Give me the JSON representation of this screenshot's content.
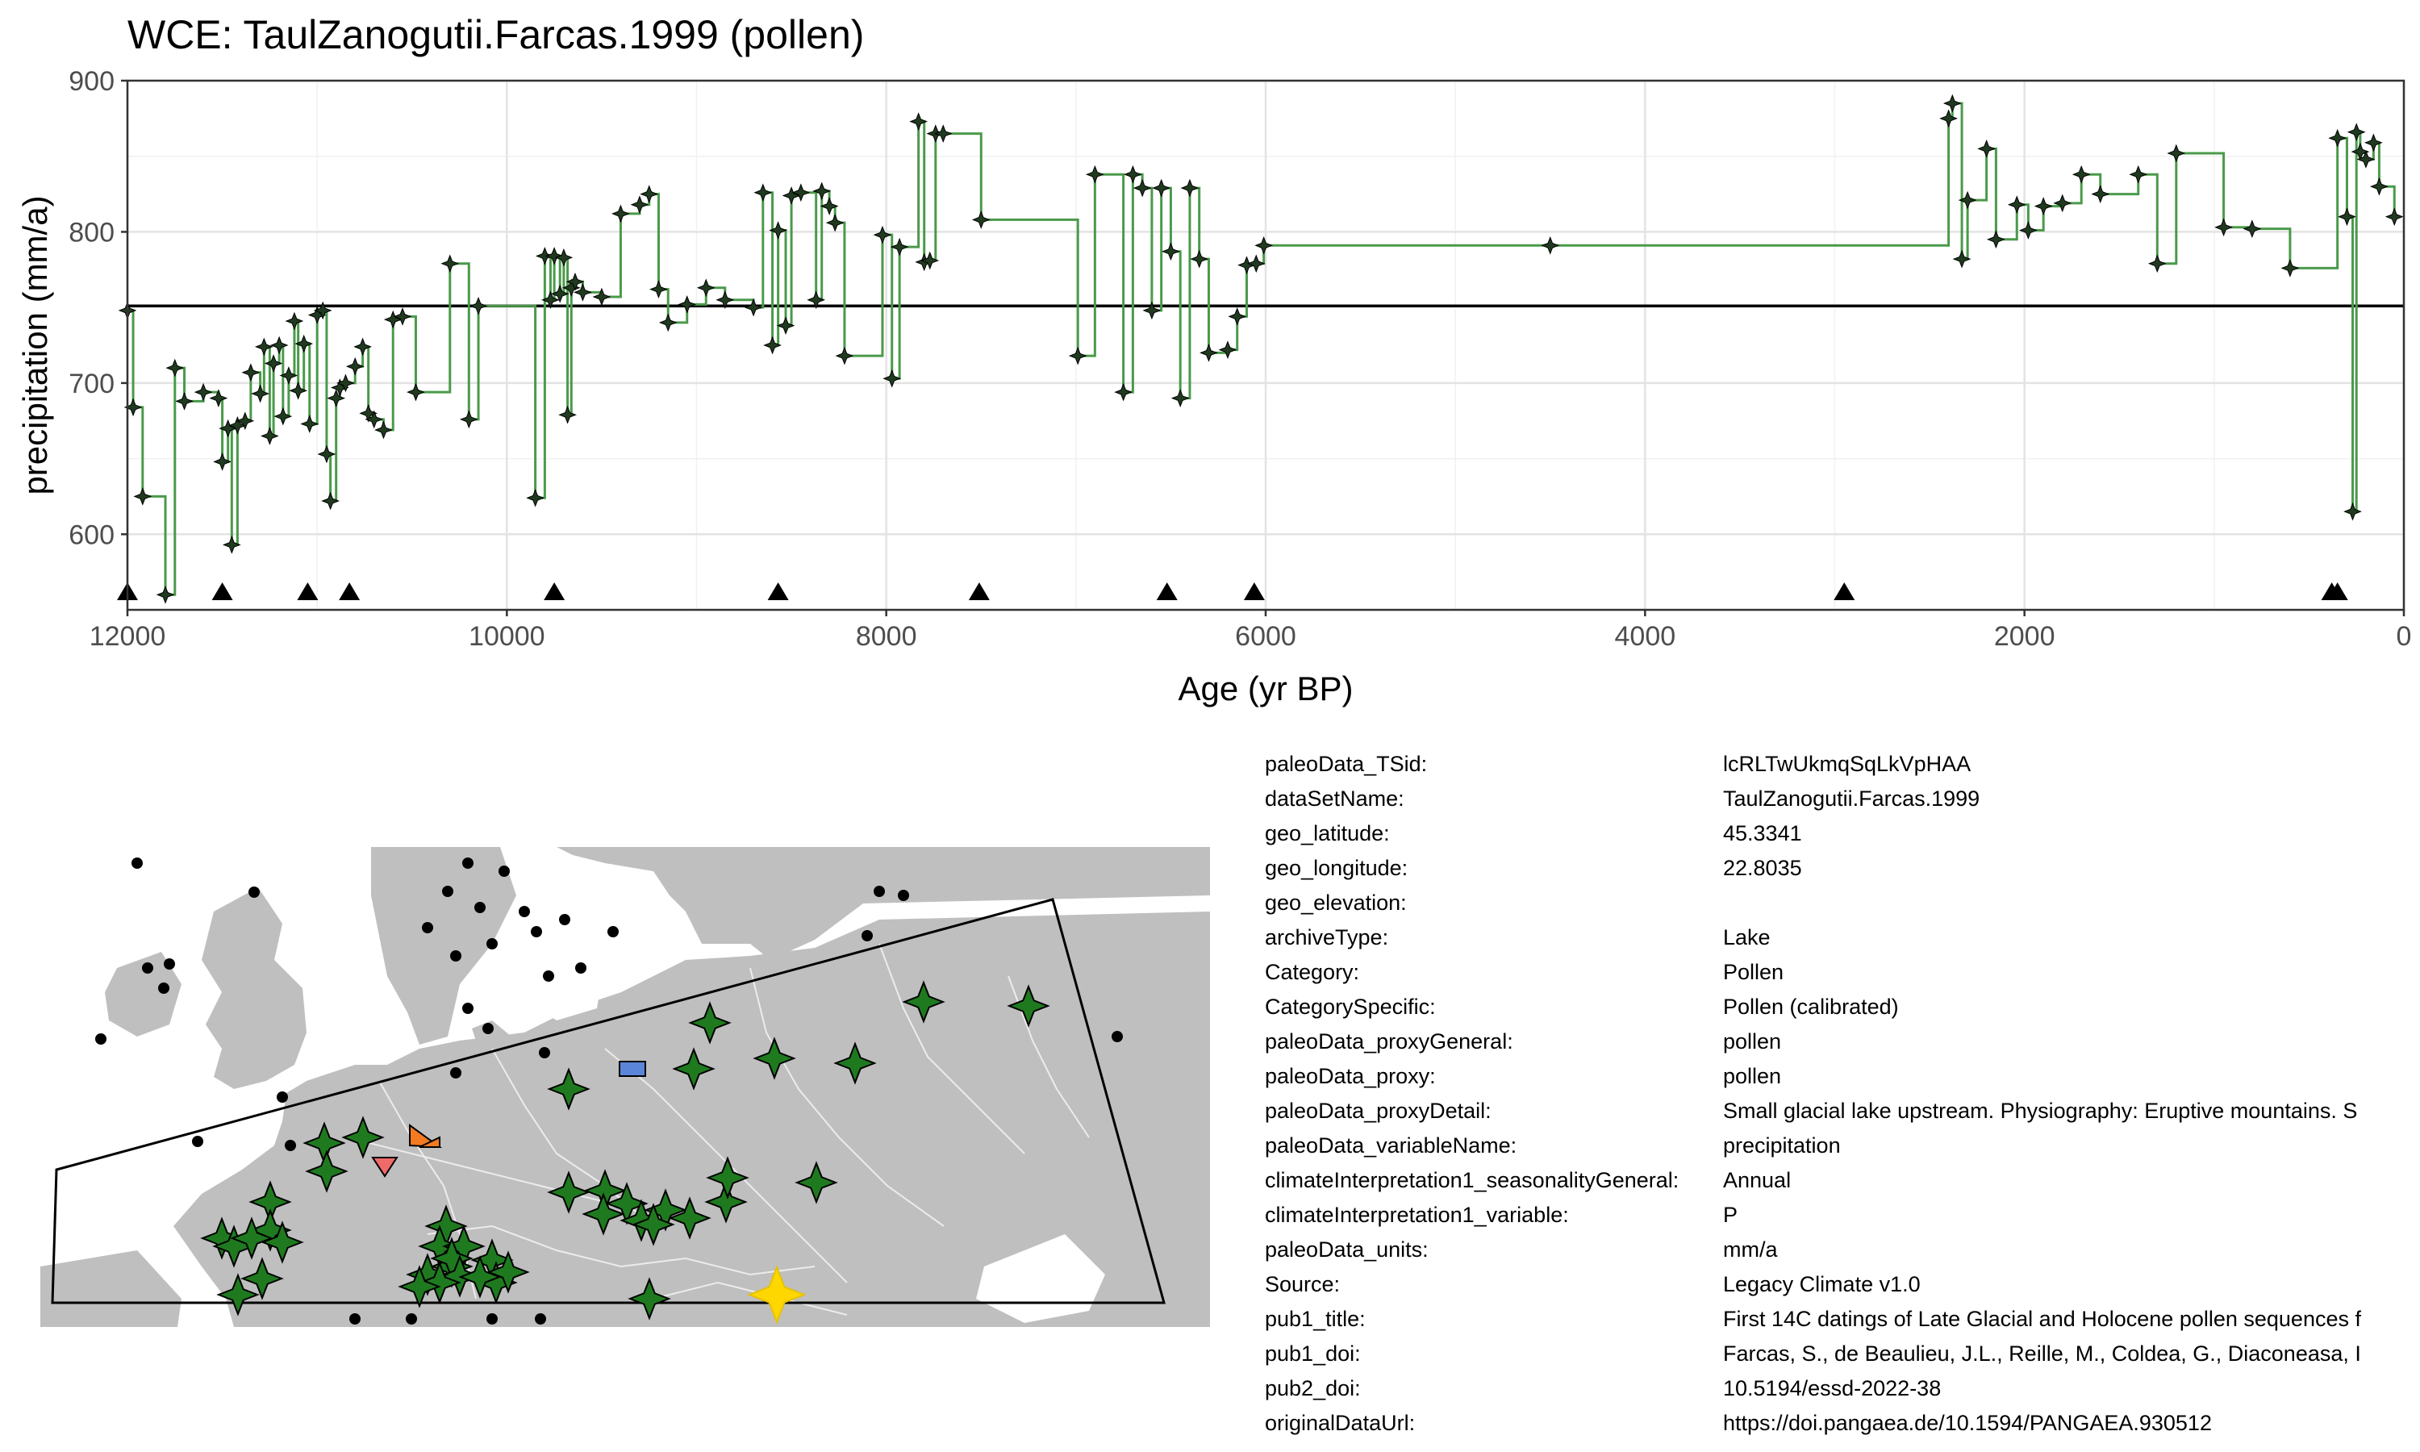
{
  "chart_data": {
    "type": "line",
    "title": "WCE: TaulZanogutii.Farcas.1999 (pollen)",
    "xlabel": "Age (yr BP)",
    "ylabel": "precipitation (mm/a)",
    "xlim": [
      12000,
      0
    ],
    "ylim": [
      550,
      900
    ],
    "x_reversed": true,
    "grid": true,
    "x_ticks": [
      12000,
      10000,
      8000,
      6000,
      4000,
      2000,
      0
    ],
    "y_ticks": [
      600,
      700,
      800,
      900
    ],
    "mean_line": 751,
    "series": [
      {
        "style": "step",
        "color": "#4a9a4a",
        "marker": "star",
        "x": [
          12000,
          11970,
          11920,
          11800,
          11750,
          11700,
          11600,
          11520,
          11500,
          11470,
          11450,
          11420,
          11380,
          11350,
          11300,
          11280,
          11250,
          11230,
          11200,
          11180,
          11150,
          11120,
          11100,
          11070,
          11040,
          11000,
          10970,
          10950,
          10930,
          10900,
          10880,
          10850,
          10800,
          10760,
          10730,
          10700,
          10650,
          10600,
          10550,
          10480,
          10300,
          10200,
          10150,
          9850,
          9800,
          9770,
          9750,
          9720,
          9700,
          9680,
          9660,
          9640,
          9600,
          9500,
          9400,
          9300,
          9250,
          9200,
          9150,
          9050,
          8950,
          8850,
          8700,
          8650,
          8600,
          8570,
          8530,
          8500,
          8450,
          8370,
          8340,
          8300,
          8270,
          8220,
          8020,
          7970,
          7930,
          7830,
          7800,
          7770,
          7740,
          7700,
          7500,
          6990,
          6900,
          6750,
          6700,
          6650,
          6600,
          6550,
          6500,
          6450,
          6400,
          6350,
          6300,
          6200,
          6150,
          6100,
          6050,
          6010,
          4500,
          2400,
          2380,
          2330,
          2300,
          2200,
          2150,
          2040,
          1980,
          1900,
          1800,
          1700,
          1600,
          1400,
          1300,
          1200,
          950,
          800,
          600,
          350,
          300,
          270,
          250,
          230,
          200,
          160,
          130,
          50
        ],
        "y": [
          748,
          684,
          625,
          560,
          710,
          688,
          694,
          690,
          648,
          670,
          593,
          672,
          675,
          707,
          693,
          724,
          665,
          713,
          725,
          678,
          705,
          741,
          695,
          726,
          673,
          745,
          748,
          653,
          622,
          690,
          697,
          700,
          711,
          724,
          680,
          676,
          669,
          742,
          744,
          694,
          779,
          676,
          751,
          624,
          784,
          755,
          784,
          759,
          783,
          679,
          763,
          767,
          760,
          757,
          812,
          818,
          825,
          762,
          740,
          752,
          763,
          755,
          750,
          826,
          725,
          801,
          738,
          824,
          826,
          755,
          827,
          817,
          806,
          718,
          798,
          703,
          790,
          873,
          780,
          781,
          865,
          865,
          808,
          718,
          838,
          694,
          838,
          829,
          748,
          829,
          787,
          690,
          829,
          782,
          720,
          722,
          744,
          778,
          779,
          791,
          791,
          875,
          885,
          782,
          821,
          855,
          795,
          818,
          801,
          817,
          819,
          838,
          825,
          838,
          779,
          852,
          803,
          802,
          776,
          862,
          810,
          615,
          866,
          853,
          848,
          859,
          830,
          810
        ]
      }
    ],
    "age_control_points": [
      12000,
      11500,
      11050,
      10830,
      9750,
      8570,
      7510,
      6520,
      6060,
      2950,
      380,
      350
    ]
  },
  "map": {
    "background_color": "#ffffff",
    "land_color": "#bfbfbf",
    "border_color": "#ececec",
    "target_marker_color": "#ffd700",
    "site_marker_color": "#1f7a1f",
    "other_site_color": "#000000",
    "extra_markers": [
      {
        "shape": "rectangle",
        "color": "#5b85d9"
      },
      {
        "shape": "triangle",
        "color": "#f47a22"
      },
      {
        "shape": "inverted-triangle",
        "color": "#f06a6a"
      }
    ]
  },
  "metadata": [
    {
      "key": "paleoData_TSid:",
      "value": "lcRLTwUkmqSqLkVpHAA"
    },
    {
      "key": "dataSetName:",
      "value": "TaulZanogutii.Farcas.1999"
    },
    {
      "key": "geo_latitude:",
      "value": "45.3341"
    },
    {
      "key": "geo_longitude:",
      "value": "22.8035"
    },
    {
      "key": "geo_elevation:",
      "value": ""
    },
    {
      "key": "archiveType:",
      "value": "Lake"
    },
    {
      "key": "Category:",
      "value": "Pollen"
    },
    {
      "key": "CategorySpecific:",
      "value": "Pollen (calibrated)"
    },
    {
      "key": "paleoData_proxyGeneral:",
      "value": "pollen"
    },
    {
      "key": "paleoData_proxy:",
      "value": "pollen"
    },
    {
      "key": "paleoData_proxyDetail:",
      "value": "Small glacial lake upstream. Physiography: Eruptive mountains. S"
    },
    {
      "key": "paleoData_variableName:",
      "value": "precipitation"
    },
    {
      "key": "climateInterpretation1_seasonalityGeneral:",
      "value": "Annual"
    },
    {
      "key": "climateInterpretation1_variable:",
      "value": "P"
    },
    {
      "key": "paleoData_units:",
      "value": "mm/a"
    },
    {
      "key": "Source:",
      "value": "Legacy Climate v1.0"
    },
    {
      "key": "pub1_title:",
      "value": "First 14C datings of Late Glacial and Holocene pollen sequences f"
    },
    {
      "key": "pub1_doi:",
      "value": "Farcas, S., de Beaulieu, J.L., Reille, M., Coldea, G., Diaconeasa, I"
    },
    {
      "key": "pub2_doi:",
      "value": "10.5194/essd-2022-38"
    },
    {
      "key": "originalDataUrl:",
      "value": "https://doi.pangaea.de/10.1594/PANGAEA.930512"
    }
  ]
}
